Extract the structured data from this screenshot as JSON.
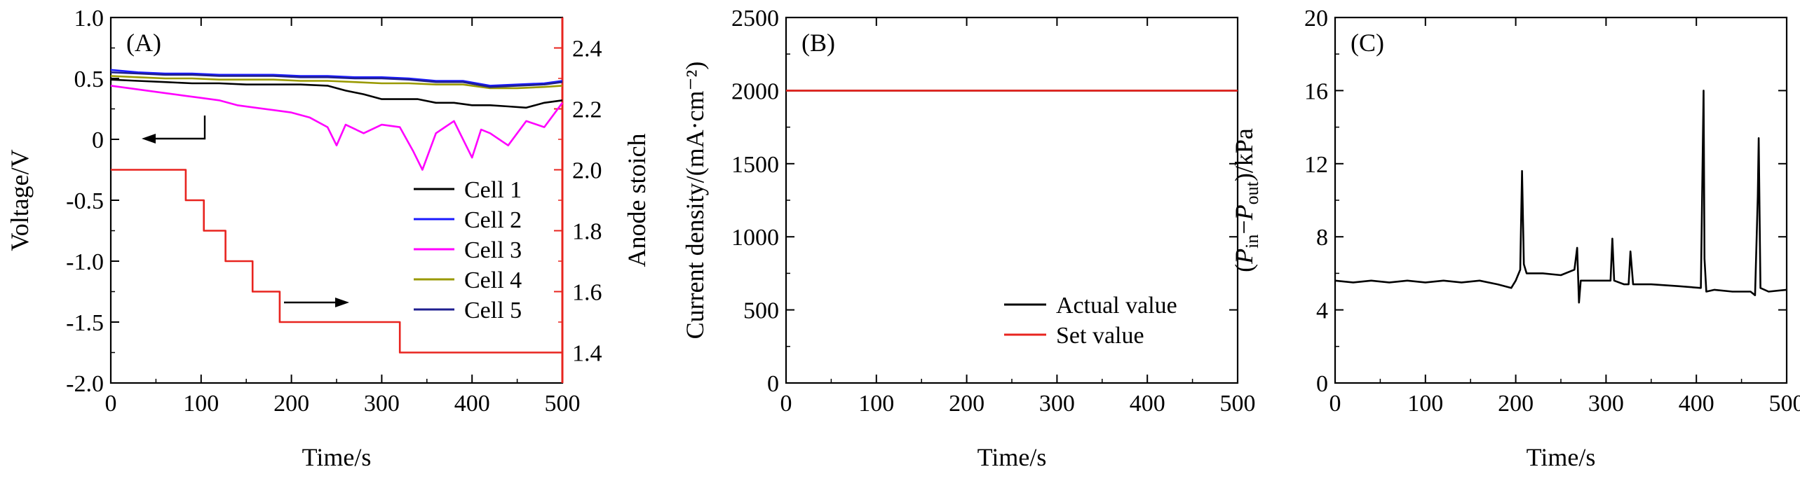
{
  "chart_data": [
    {
      "type": "line",
      "panel": "(A)",
      "xlabel": "Time/s",
      "ylabel": "Voltage/V",
      "y2label": "Anode stoich",
      "xlim": [
        0,
        500
      ],
      "ylim": [
        -2.0,
        1.0
      ],
      "y2lim": [
        1.3,
        2.5
      ],
      "x_ticks": [
        "0",
        "100",
        "200",
        "300",
        "400",
        "500"
      ],
      "y_ticks": [
        "-2.0",
        "-1.5",
        "-1.0",
        "-0.5",
        "0",
        "0.5",
        "1.0"
      ],
      "y2_ticks": [
        "1.4",
        "1.6",
        "1.8",
        "2.0",
        "2.2",
        "2.4"
      ],
      "legend_position": "lower-right",
      "series": [
        {
          "name": "Cell 1",
          "color": "#000000",
          "x": [
            0,
            30,
            60,
            90,
            120,
            150,
            180,
            210,
            240,
            260,
            280,
            300,
            320,
            340,
            360,
            380,
            400,
            420,
            440,
            460,
            480,
            500
          ],
          "values": [
            0.49,
            0.48,
            0.47,
            0.46,
            0.46,
            0.45,
            0.45,
            0.45,
            0.44,
            0.4,
            0.37,
            0.33,
            0.33,
            0.33,
            0.3,
            0.3,
            0.28,
            0.28,
            0.27,
            0.26,
            0.3,
            0.32
          ]
        },
        {
          "name": "Cell 2",
          "color": "#1a1aff",
          "x": [
            0,
            30,
            60,
            90,
            120,
            150,
            180,
            210,
            240,
            270,
            300,
            330,
            360,
            390,
            420,
            450,
            480,
            500
          ],
          "values": [
            0.57,
            0.55,
            0.54,
            0.54,
            0.53,
            0.53,
            0.53,
            0.52,
            0.52,
            0.51,
            0.51,
            0.5,
            0.48,
            0.48,
            0.44,
            0.45,
            0.46,
            0.48
          ]
        },
        {
          "name": "Cell 3",
          "color": "#ff00ff",
          "x": [
            0,
            20,
            40,
            60,
            80,
            100,
            120,
            140,
            160,
            180,
            200,
            220,
            240,
            250,
            260,
            280,
            300,
            320,
            335,
            345,
            360,
            380,
            400,
            410,
            420,
            440,
            460,
            480,
            500
          ],
          "values": [
            0.44,
            0.42,
            0.4,
            0.38,
            0.36,
            0.34,
            0.32,
            0.28,
            0.26,
            0.24,
            0.22,
            0.18,
            0.1,
            -0.05,
            0.12,
            0.05,
            0.12,
            0.1,
            -0.1,
            -0.25,
            0.05,
            0.15,
            -0.15,
            0.08,
            0.05,
            -0.05,
            0.15,
            0.1,
            0.3
          ]
        },
        {
          "name": "Cell 4",
          "color": "#999900",
          "x": [
            0,
            30,
            60,
            90,
            120,
            150,
            180,
            210,
            240,
            270,
            300,
            330,
            360,
            390,
            420,
            450,
            480,
            500
          ],
          "values": [
            0.52,
            0.51,
            0.5,
            0.5,
            0.49,
            0.49,
            0.49,
            0.48,
            0.48,
            0.47,
            0.46,
            0.46,
            0.45,
            0.45,
            0.42,
            0.42,
            0.43,
            0.44
          ]
        },
        {
          "name": "Cell 5",
          "color": "#1f1f8f",
          "x": [
            0,
            30,
            60,
            90,
            120,
            150,
            180,
            210,
            240,
            270,
            300,
            330,
            360,
            390,
            420,
            450,
            480,
            500
          ],
          "values": [
            0.55,
            0.54,
            0.53,
            0.53,
            0.52,
            0.52,
            0.52,
            0.51,
            0.51,
            0.5,
            0.5,
            0.49,
            0.47,
            0.47,
            0.43,
            0.44,
            0.45,
            0.47
          ]
        },
        {
          "name": "Anode stoich",
          "axis": "right",
          "color": "#e8241f",
          "x": [
            0,
            83,
            83,
            103,
            103,
            127,
            127,
            157,
            157,
            187,
            187,
            320,
            320,
            500
          ],
          "values": [
            2.0,
            2.0,
            1.9,
            1.9,
            1.8,
            1.8,
            1.7,
            1.7,
            1.6,
            1.6,
            1.5,
            1.5,
            1.4,
            1.4
          ]
        }
      ]
    },
    {
      "type": "line",
      "panel": "(B)",
      "xlabel": "Time/s",
      "ylabel": "Current density/(mA·cm⁻²)",
      "xlim": [
        0,
        500
      ],
      "ylim": [
        0,
        2500
      ],
      "x_ticks": [
        "0",
        "100",
        "200",
        "300",
        "400",
        "500"
      ],
      "y_ticks": [
        "0",
        "500",
        "1000",
        "1500",
        "2000",
        "2500"
      ],
      "legend_position": "lower-right",
      "series": [
        {
          "name": "Actual value",
          "color": "#000000",
          "x": [
            0,
            500
          ],
          "values": [
            2000,
            2000
          ]
        },
        {
          "name": "Set value",
          "color": "#e8241f",
          "x": [
            0,
            500
          ],
          "values": [
            2000,
            2000
          ]
        }
      ]
    },
    {
      "type": "line",
      "panel": "(C)",
      "xlabel": "Time/s",
      "ylabel_parts": {
        "open": "(",
        "p1": "P",
        "sub1": "in",
        "dash": "−",
        "p2": "P",
        "sub2": "out",
        "close": ")/kPa"
      },
      "xlim": [
        0,
        500
      ],
      "ylim": [
        0,
        20
      ],
      "x_ticks": [
        "0",
        "100",
        "200",
        "300",
        "400",
        "500"
      ],
      "y_ticks": [
        "0",
        "4",
        "8",
        "12",
        "16",
        "20"
      ],
      "series": [
        {
          "color": "#000000",
          "x": [
            0,
            20,
            40,
            60,
            80,
            100,
            120,
            140,
            160,
            180,
            195,
            200,
            205,
            207,
            209,
            212,
            230,
            250,
            265,
            268,
            270,
            272,
            290,
            305,
            307,
            309,
            320,
            325,
            327,
            330,
            350,
            380,
            405,
            408,
            409,
            411,
            420,
            440,
            460,
            465,
            468,
            469,
            471,
            480,
            500
          ],
          "values": [
            5.6,
            5.5,
            5.6,
            5.5,
            5.6,
            5.5,
            5.6,
            5.5,
            5.6,
            5.4,
            5.2,
            5.6,
            6.2,
            11.6,
            6.5,
            6.0,
            6.0,
            5.9,
            6.2,
            7.4,
            4.4,
            5.6,
            5.6,
            5.6,
            7.9,
            5.6,
            5.4,
            5.4,
            7.2,
            5.4,
            5.4,
            5.3,
            5.2,
            16.0,
            6.8,
            5.0,
            5.1,
            5.0,
            5.0,
            4.8,
            10.2,
            13.4,
            5.2,
            5.0,
            5.1
          ]
        }
      ]
    }
  ]
}
